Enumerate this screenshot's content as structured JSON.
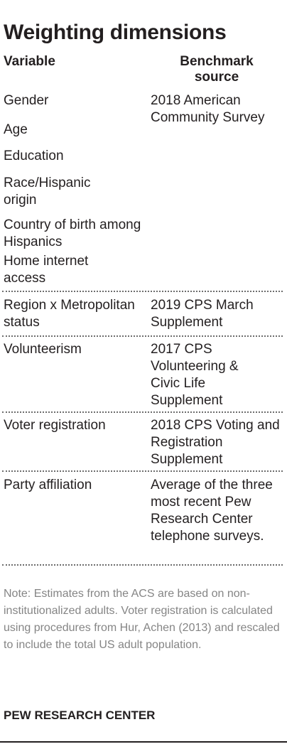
{
  "title": "Weighting dimensions",
  "columns": {
    "variable": "Variable",
    "source": "Benchmark source"
  },
  "groups": [
    {
      "variables": [
        "Gender",
        "Age",
        "Education",
        "Race/Hispanic origin",
        "Country of birth among Hispanics",
        "Home internet access"
      ],
      "source": "2018 American Community Survey"
    },
    {
      "variables": [
        "Region x Metropolitan status"
      ],
      "source": "2019 CPS March Supplement"
    },
    {
      "variables": [
        "Volunteerism"
      ],
      "source": "2017 CPS Volunteering & Civic Life Supplement"
    },
    {
      "variables": [
        "Voter registration"
      ],
      "source": "2018 CPS Voting and Registration Supplement"
    },
    {
      "variables": [
        "Party affiliation"
      ],
      "source": "Average of the three most recent Pew Research Center telephone surveys."
    }
  ],
  "note": "Note: Estimates from the ACS are based on non-institutionalized adults. Voter registration is calculated using procedures from Hur, Achen (2013) and rescaled to include the total US adult population.",
  "source_org": "PEW RESEARCH CENTER"
}
